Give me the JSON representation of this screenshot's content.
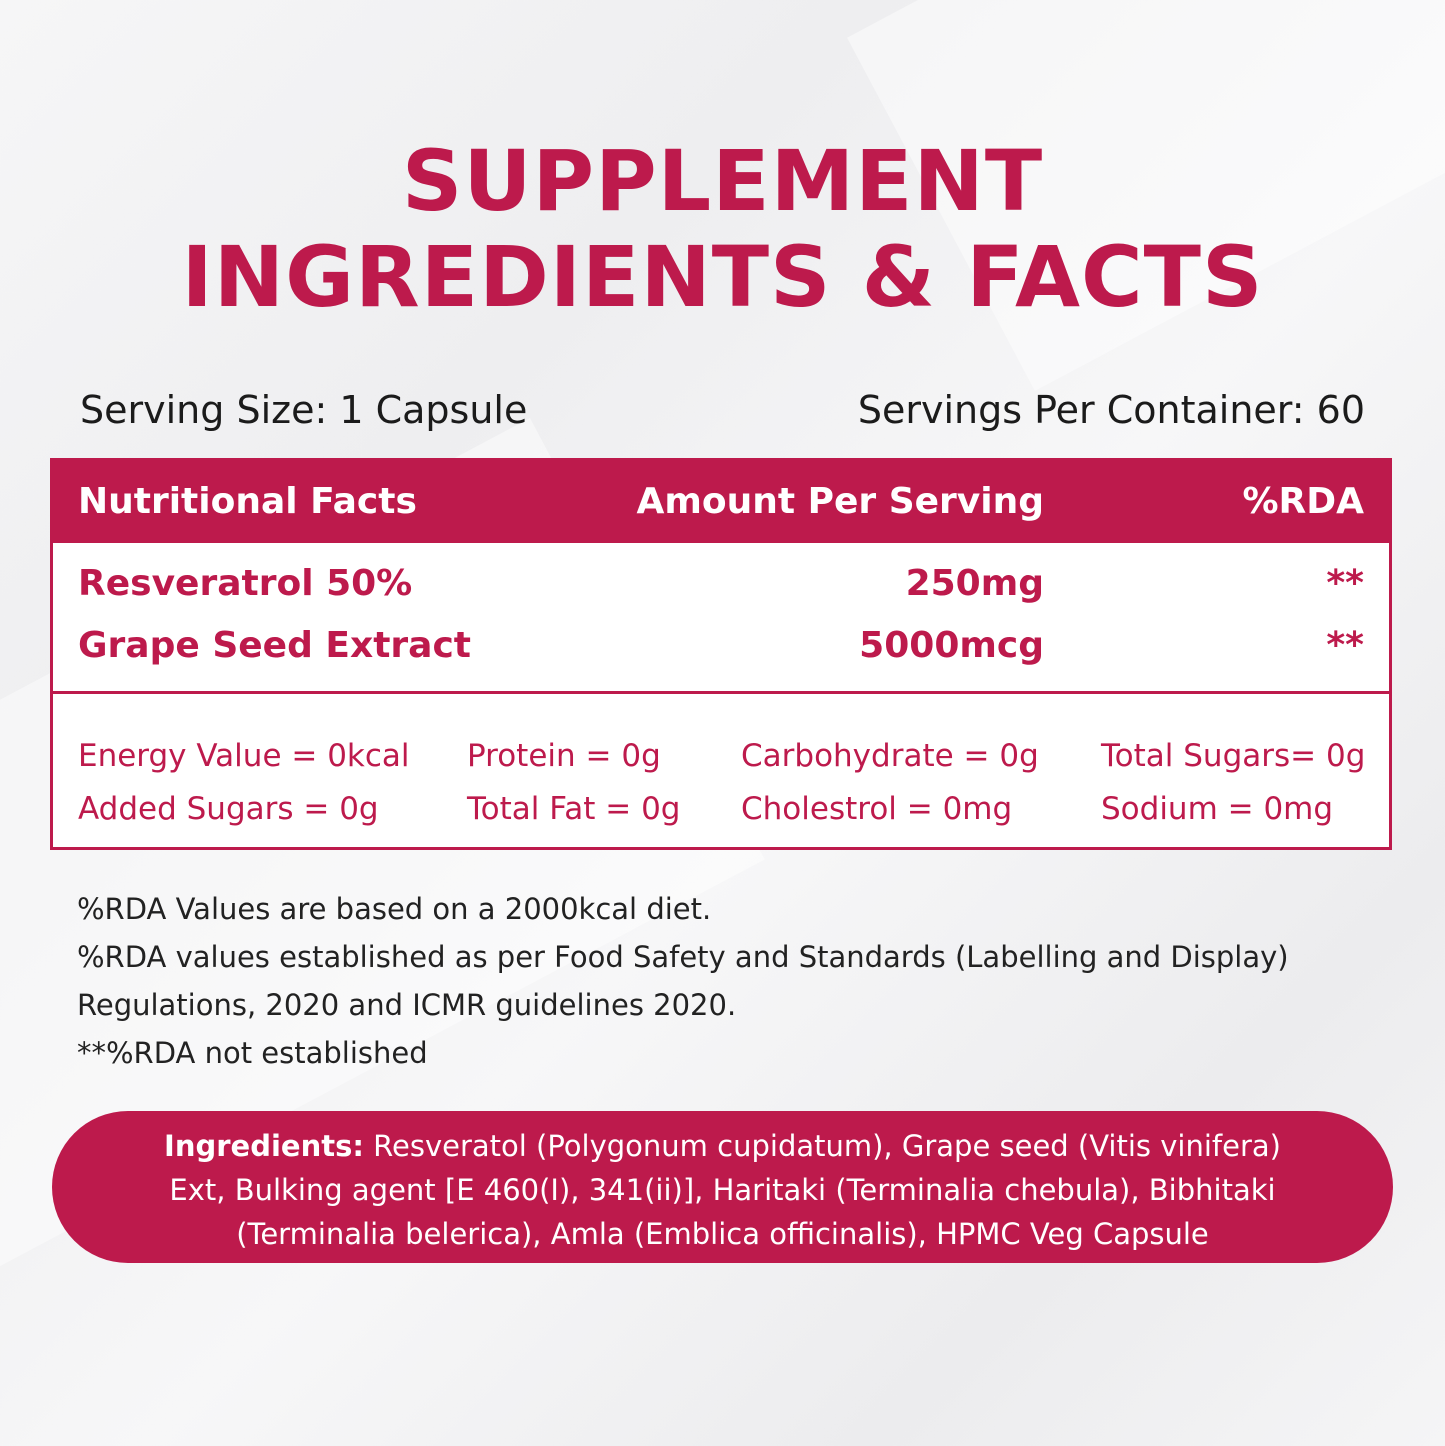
{
  "title": {
    "line1": "SUPPLEMENT",
    "line2": "INGREDIENTS & FACTS"
  },
  "serving": {
    "size": "Serving Size: 1 Capsule",
    "per_container": "Servings Per Container: 60"
  },
  "table": {
    "headers": [
      "Nutritional Facts",
      "Amount Per Serving",
      "%RDA"
    ],
    "rows": [
      {
        "name": "Resveratrol 50%",
        "amount": "250mg",
        "rda": "**"
      },
      {
        "name": "Grape Seed Extract",
        "amount": "5000mcg",
        "rda": "**"
      }
    ],
    "nutrients": [
      [
        "Energy Value = 0kcal",
        "Protein = 0g",
        "Carbohydrate = 0g",
        "Total Sugars= 0g"
      ],
      [
        "Added Sugars = 0g",
        "Total Fat = 0g",
        "Cholestrol = 0mg",
        "Sodium = 0mg"
      ]
    ]
  },
  "notes": [
    "%RDA Values are based on a 2000kcal diet.",
    "%RDA values established as per Food Safety and Standards (Labelling and Display)",
    "Regulations, 2020 and ICMR guidelines 2020.",
    "**%RDA not established"
  ],
  "ingredients": {
    "label": "Ingredients:",
    "text": " Resveratol (Polygonum cupidatum), Grape seed (Vitis vinifera) Ext, Bulking agent [E 460(I), 341(ii)], Haritaki (Terminalia chebula), Bibhitaki (Terminalia belerica), Amla (Emblica officinalis), HPMC Veg Capsule"
  },
  "colors": {
    "accent": "#bd1a4c",
    "text": "#1b1b1b",
    "background": "#f2f2f3"
  }
}
